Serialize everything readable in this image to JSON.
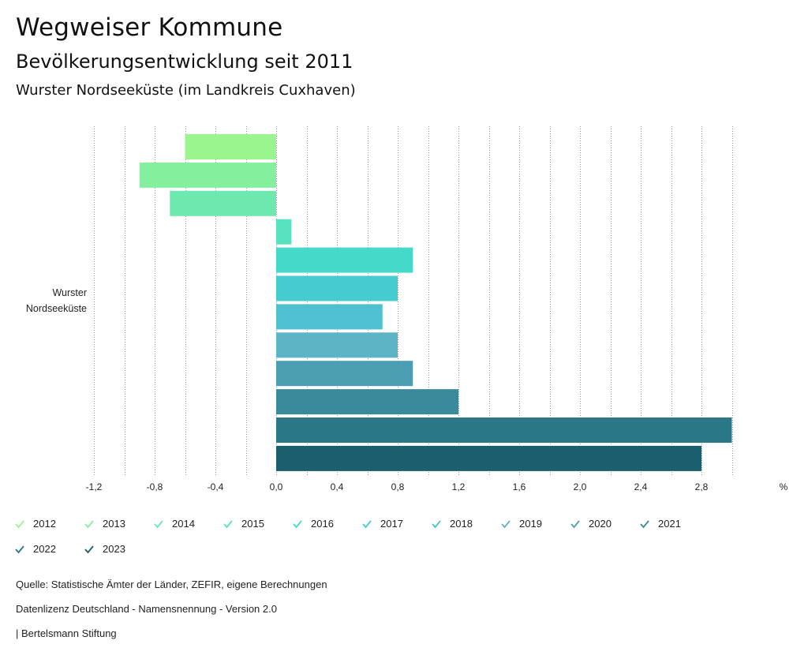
{
  "header": {
    "title": "Wegweiser Kommune",
    "subtitle": "Bevölkerungsentwicklung seit 2011",
    "region": "Wurster Nordseeküste (im Landkreis Cuxhaven)"
  },
  "chart_data": {
    "type": "bar",
    "orientation": "horizontal",
    "category": "Wurster Nordseeküste",
    "category_lines": [
      "Wurster",
      "Nordseeküste"
    ],
    "unit": "%",
    "xlim": [
      -1.2,
      3.0
    ],
    "ticks": [
      -1.2,
      -0.8,
      -0.4,
      0.0,
      0.4,
      0.8,
      1.2,
      1.6,
      2.0,
      2.4,
      2.8
    ],
    "tick_labels": [
      "-1,2",
      "-0,8",
      "-0,4",
      "0,0",
      "0,4",
      "0,8",
      "1,2",
      "1,6",
      "2,0",
      "2,4",
      "2,8"
    ],
    "series": [
      {
        "name": "2012",
        "value": -0.6,
        "color": "#9af58e"
      },
      {
        "name": "2013",
        "value": -0.9,
        "color": "#84f09e"
      },
      {
        "name": "2014",
        "value": -0.7,
        "color": "#6de9b0"
      },
      {
        "name": "2015",
        "value": 0.1,
        "color": "#58e2bf"
      },
      {
        "name": "2016",
        "value": 0.9,
        "color": "#45d9c9"
      },
      {
        "name": "2017",
        "value": 0.8,
        "color": "#44ccd1"
      },
      {
        "name": "2018",
        "value": 0.7,
        "color": "#4ec0cf"
      },
      {
        "name": "2019",
        "value": 0.8,
        "color": "#5db4c6"
      },
      {
        "name": "2020",
        "value": 0.9,
        "color": "#4b9eb1"
      },
      {
        "name": "2021",
        "value": 1.2,
        "color": "#3a8a9b"
      },
      {
        "name": "2022",
        "value": 3.0,
        "color": "#2a7887"
      },
      {
        "name": "2023",
        "value": 2.8,
        "color": "#1b5f6f"
      }
    ]
  },
  "footer": {
    "source": "Quelle: Statistische Ämter der Länder, ZEFIR, eigene Berechnungen",
    "license": "Datenlizenz Deutschland - Namensnennung - Version 2.0",
    "publisher": "| Bertelsmann Stiftung"
  }
}
